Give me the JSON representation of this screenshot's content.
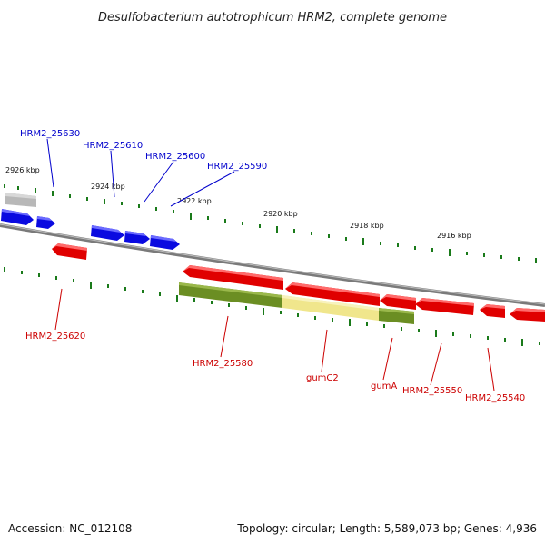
{
  "title": "Desulfobacterium autotrophicum HRM2, complete genome",
  "footer": {
    "accession": "Accession: NC_012108",
    "summary": "Topology: circular; Length: 5,589,073 bp; Genes: 4,936"
  },
  "colors": {
    "forward_gene": "#0000ee",
    "reverse_gene": "#ee0000",
    "highlight_gene": "#6b8e23",
    "selected_gene": "#f0e68c",
    "backbone": "#808080",
    "tick": "#1a7a1a"
  },
  "kbp_labels": [
    "2926 kbp",
    "2924 kbp",
    "2922 kbp",
    "2920 kbp",
    "2918 kbp",
    "2916 kbp"
  ],
  "top_labels": [
    "HRM2_25630",
    "HRM2_25610",
    "HRM2_25600",
    "HRM2_25590"
  ],
  "bottom_labels": [
    "HRM2_25620",
    "HRM2_25580",
    "gumC2",
    "gumA",
    "HRM2_25550",
    "HRM2_25540"
  ]
}
